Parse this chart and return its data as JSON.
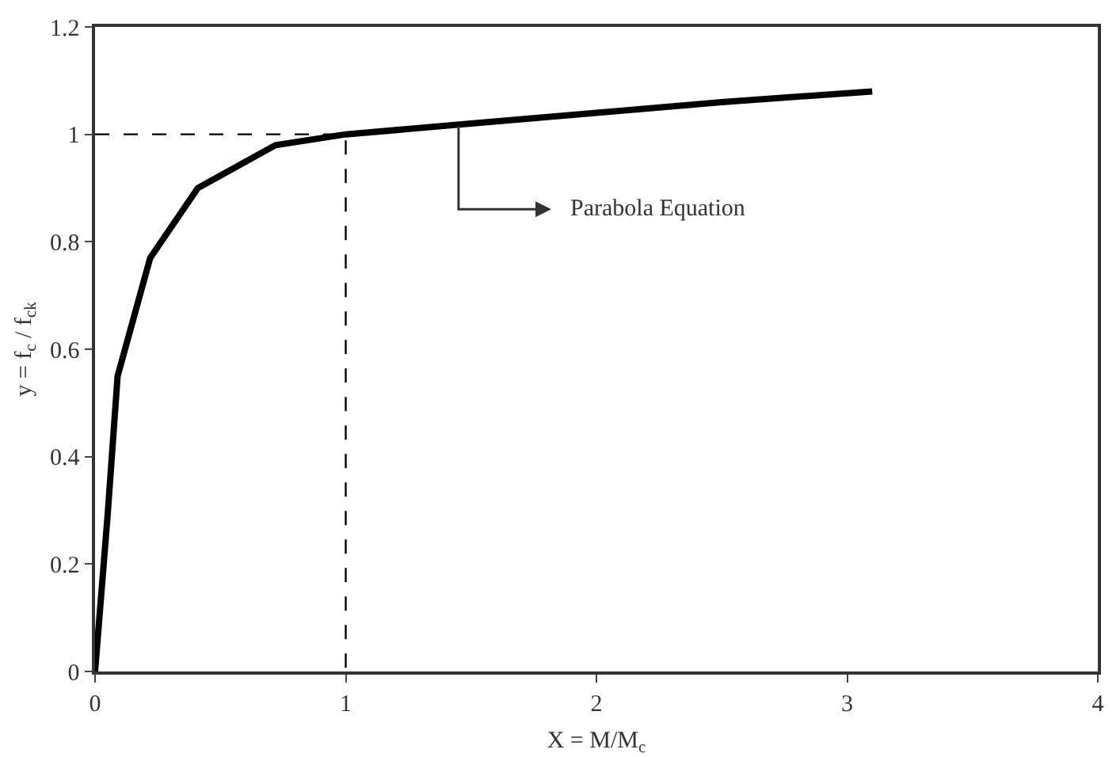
{
  "chart_data": {
    "type": "line",
    "xlabel": "X = M/M$_{c}$",
    "ylabel": "y = f$_{c}$ / f$_{ck}$",
    "xlim": [
      0,
      4
    ],
    "xticks": [
      0,
      1,
      2,
      3,
      4
    ],
    "ylim": [
      0,
      1.2
    ],
    "yticks": [
      0,
      0.2,
      0.4,
      0.6,
      0.8,
      1,
      1.2
    ],
    "series": [
      {
        "color": "#000000",
        "line_style": "solid",
        "x": [
          0,
          0.05,
          0.09,
          0.22,
          0.41,
          0.72,
          1.0,
          1.5,
          2.0,
          2.5,
          3.1
        ],
        "values": [
          0,
          0.29,
          0.55,
          0.77,
          0.9,
          0.98,
          1.0,
          1.02,
          1.04,
          1.06,
          1.08
        ]
      },
      {
        "color": "#000000",
        "line_style": "dashed",
        "x": [
          0,
          1,
          1
        ],
        "values": [
          1,
          1,
          0
        ]
      }
    ],
    "annotations": [
      "Parabola Equation"
    ]
  }
}
